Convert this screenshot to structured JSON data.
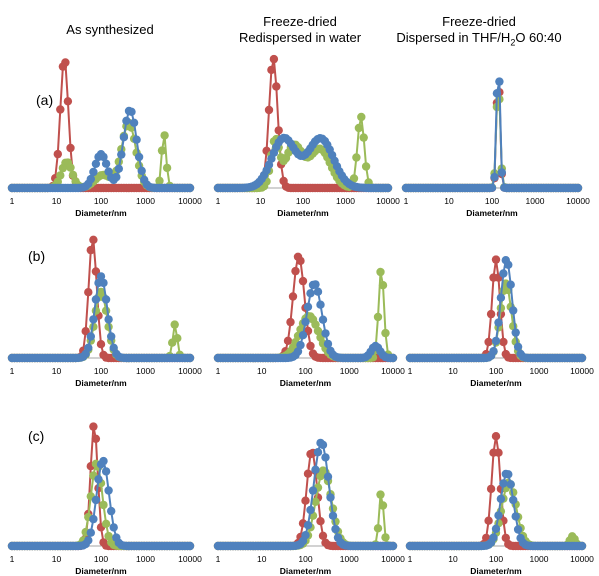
{
  "columns": [
    {
      "line1": "As synthesized",
      "line2": ""
    },
    {
      "line1": "Freeze-dried",
      "line2": "Redispersed in water"
    },
    {
      "line1": "Freeze-dried",
      "line2": "Dispersed in THF/H",
      "sub": "2",
      "tail": "O 60:40"
    }
  ],
  "rows": [
    "(a)",
    "(b)",
    "(c)"
  ],
  "colors": {
    "red": "#c0504d",
    "green": "#9bbb59",
    "blue": "#4f81bd",
    "axis": "#a6a6a6"
  },
  "chart_data": [
    {
      "id": "a1",
      "type": "scatter",
      "xscale": "log",
      "xlabel": "Diameter/nm",
      "xticks": [
        "1",
        "10",
        "100",
        "1000",
        "10000"
      ],
      "xlim": [
        1,
        10000
      ],
      "series": [
        {
          "color": "red",
          "peaks": [
            [
              15,
              1.0,
              0.09
            ]
          ]
        },
        {
          "color": "green",
          "peaks": [
            [
              17,
              0.2,
              0.12
            ],
            [
              110,
              0.1,
              0.18
            ],
            [
              420,
              0.5,
              0.16
            ],
            [
              2600,
              0.42,
              0.05
            ]
          ]
        },
        {
          "color": "blue",
          "peaks": [
            [
              100,
              0.26,
              0.14
            ],
            [
              450,
              0.6,
              0.15
            ]
          ]
        }
      ]
    },
    {
      "id": "a2",
      "type": "scatter",
      "xscale": "log",
      "xlabel": "Diameter/nm",
      "xticks": [
        "1",
        "10",
        "100",
        "1000",
        "10000"
      ],
      "xlim": [
        1,
        10000
      ],
      "series": [
        {
          "color": "red",
          "peaks": [
            [
              20,
              1.0,
              0.1
            ]
          ]
        },
        {
          "color": "green",
          "peaks": [
            [
              22,
              0.35,
              0.1
            ],
            [
              60,
              0.32,
              0.2
            ],
            [
              250,
              0.3,
              0.25
            ],
            [
              2300,
              0.55,
              0.08
            ]
          ]
        },
        {
          "color": "blue",
          "peaks": [
            [
              35,
              0.38,
              0.28
            ],
            [
              260,
              0.38,
              0.3
            ]
          ]
        }
      ]
    },
    {
      "id": "a3",
      "type": "scatter",
      "xscale": "log",
      "xlabel": "Diameter/nm",
      "xticks": [
        "1",
        "10",
        "100",
        "1000",
        "10000"
      ],
      "xlim": [
        1,
        10000
      ],
      "series": [
        {
          "color": "red",
          "peaks": [
            [
              140,
              0.9,
              0.04
            ]
          ]
        },
        {
          "color": "green",
          "peaks": [
            [
              140,
              0.8,
              0.045
            ]
          ]
        },
        {
          "color": "blue",
          "peaks": [
            [
              140,
              1.0,
              0.04
            ]
          ]
        }
      ]
    },
    {
      "id": "b1",
      "type": "scatter",
      "xscale": "log",
      "xlabel": "Diameter/nm",
      "xticks": [
        "1",
        "10",
        "100",
        "1000",
        "10000"
      ],
      "xlim": [
        1,
        10000
      ],
      "series": [
        {
          "color": "red",
          "peaks": [
            [
              65,
              1.0,
              0.09
            ]
          ]
        },
        {
          "color": "green",
          "peaks": [
            [
              100,
              0.55,
              0.14
            ],
            [
              4600,
              0.28,
              0.05
            ]
          ]
        },
        {
          "color": "blue",
          "peaks": [
            [
              100,
              0.68,
              0.14
            ]
          ]
        }
      ]
    },
    {
      "id": "b2",
      "type": "scatter",
      "xscale": "log",
      "xlabel": "Diameter/nm",
      "xticks": [
        "1",
        "10",
        "100",
        "1000",
        "10000"
      ],
      "xlim": [
        1,
        10000
      ],
      "series": [
        {
          "color": "red",
          "peaks": [
            [
              70,
              0.85,
              0.13
            ]
          ]
        },
        {
          "color": "green",
          "peaks": [
            [
              120,
              0.35,
              0.22
            ],
            [
              5400,
              0.75,
              0.06
            ]
          ]
        },
        {
          "color": "blue",
          "peaks": [
            [
              160,
              0.62,
              0.17
            ],
            [
              4000,
              0.1,
              0.1
            ]
          ]
        }
      ]
    },
    {
      "id": "b3",
      "type": "scatter",
      "xscale": "log",
      "xlabel": "Diameter/nm",
      "xticks": [
        "1",
        "10",
        "100",
        "1000",
        "10000"
      ],
      "xlim": [
        1,
        10000
      ],
      "series": [
        {
          "color": "red",
          "peaks": [
            [
              100,
              0.82,
              0.09
            ]
          ]
        },
        {
          "color": "green",
          "peaks": [
            [
              170,
              0.62,
              0.13
            ]
          ]
        },
        {
          "color": "blue",
          "peaks": [
            [
              175,
              0.82,
              0.13
            ]
          ]
        }
      ]
    },
    {
      "id": "c1",
      "type": "scatter",
      "xscale": "log",
      "xlabel": "Diameter/nm",
      "xticks": [
        "1",
        "10",
        "100",
        "1000",
        "10000"
      ],
      "xlim": [
        1,
        10000
      ],
      "series": [
        {
          "color": "red",
          "peaks": [
            [
              70,
              1.0,
              0.08
            ]
          ]
        },
        {
          "color": "green",
          "peaks": [
            [
              80,
              0.68,
              0.13
            ]
          ]
        },
        {
          "color": "blue",
          "peaks": [
            [
              110,
              0.7,
              0.14
            ]
          ]
        }
      ]
    },
    {
      "id": "c2",
      "type": "scatter",
      "xscale": "log",
      "xlabel": "Diameter/nm",
      "xticks": [
        "1",
        "10",
        "100",
        "1000",
        "10000"
      ],
      "xlim": [
        1,
        10000
      ],
      "series": [
        {
          "color": "red",
          "peaks": [
            [
              140,
              0.78,
              0.12
            ]
          ]
        },
        {
          "color": "green",
          "peaks": [
            [
              260,
              0.62,
              0.18
            ],
            [
              5400,
              0.45,
              0.05
            ]
          ]
        },
        {
          "color": "blue",
          "peaks": [
            [
              230,
              0.85,
              0.17
            ]
          ]
        }
      ]
    },
    {
      "id": "c3",
      "type": "scatter",
      "xscale": "log",
      "xlabel": "Diameter/nm",
      "xticks": [
        "1",
        "10",
        "100",
        "1000",
        "10000"
      ],
      "xlim": [
        1,
        10000
      ],
      "series": [
        {
          "color": "red",
          "peaks": [
            [
              100,
              0.9,
              0.1
            ]
          ]
        },
        {
          "color": "green",
          "peaks": [
            [
              200,
              0.52,
              0.17
            ],
            [
              6000,
              0.08,
              0.06
            ]
          ]
        },
        {
          "color": "blue",
          "peaks": [
            [
              180,
              0.6,
              0.15
            ]
          ]
        }
      ]
    }
  ]
}
